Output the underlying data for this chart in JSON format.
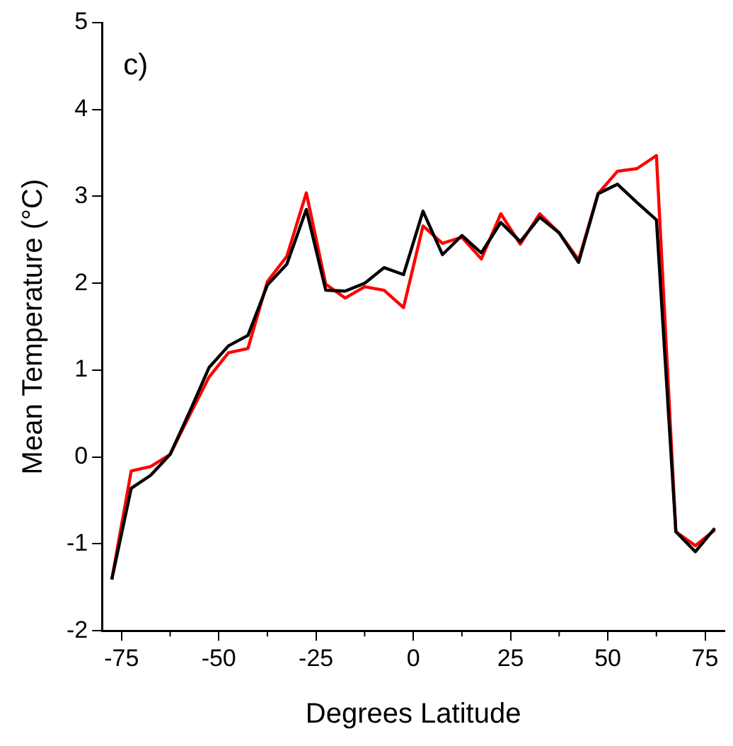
{
  "chart_data": {
    "type": "line",
    "xlabel": "Degrees Latitude",
    "ylabel": "Mean Temperature (°C)",
    "annotations": [
      "c)"
    ],
    "x": [
      -77.5,
      -72.5,
      -67.5,
      -62.5,
      -57.5,
      -52.5,
      -47.5,
      -42.5,
      -37.5,
      -32.5,
      -27.5,
      -22.5,
      -17.5,
      -12.5,
      -7.5,
      -2.5,
      2.5,
      7.5,
      12.5,
      17.5,
      22.5,
      27.5,
      32.5,
      37.5,
      42.5,
      47.5,
      52.5,
      57.5,
      62.5,
      67.5,
      72.5,
      77.5
    ],
    "series": [
      {
        "color": "#000000",
        "values": [
          -1.41,
          -0.36,
          -0.21,
          0.03,
          0.52,
          1.03,
          1.28,
          1.4,
          1.98,
          2.22,
          2.85,
          1.92,
          1.91,
          2.0,
          2.18,
          2.1,
          2.83,
          2.33,
          2.55,
          2.35,
          2.7,
          2.48,
          2.76,
          2.58,
          2.24,
          3.03,
          3.14,
          2.93,
          2.73,
          -0.86,
          -1.09,
          -0.82
        ]
      },
      {
        "color": "#ff0000",
        "values": [
          -1.41,
          -0.16,
          -0.11,
          0.03,
          0.48,
          0.92,
          1.2,
          1.25,
          2.02,
          2.31,
          3.04,
          1.99,
          1.83,
          1.96,
          1.92,
          1.72,
          2.66,
          2.46,
          2.53,
          2.28,
          2.8,
          2.45,
          2.8,
          2.58,
          2.27,
          3.03,
          3.29,
          3.32,
          3.47,
          -0.86,
          -1.02,
          -0.84
        ]
      }
    ],
    "xlim": [
      -80,
      80
    ],
    "xticks": [
      -75,
      -50,
      -25,
      0,
      25,
      50,
      75
    ],
    "ylim": [
      -2,
      5
    ],
    "yticks": [
      -2,
      -1,
      0,
      1,
      2,
      3,
      4,
      5
    ],
    "grid": false,
    "legend": false,
    "marker": "none",
    "line_style": "solid"
  }
}
